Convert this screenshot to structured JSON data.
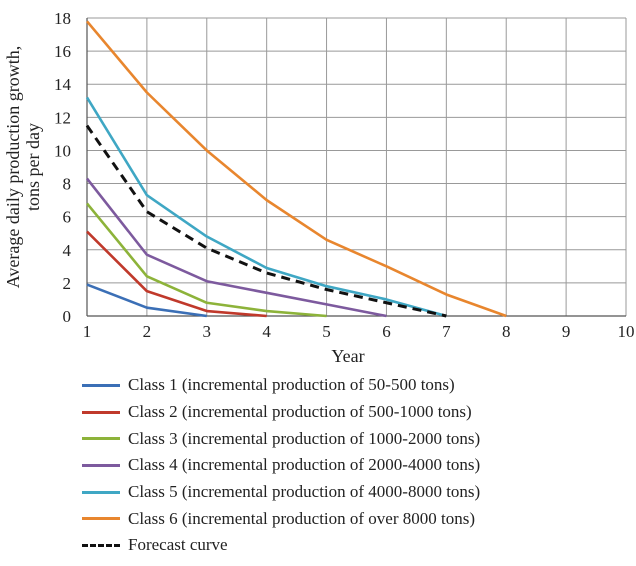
{
  "chart_data": {
    "type": "line",
    "xlabel": "Year",
    "ylabel": "Average daily production growth, tons per day",
    "xlim": [
      1,
      10
    ],
    "ylim": [
      0,
      18
    ],
    "xticks": [
      1,
      2,
      3,
      4,
      5,
      6,
      7,
      8,
      9,
      10
    ],
    "yticks": [
      0,
      2,
      4,
      6,
      8,
      10,
      12,
      14,
      16,
      18
    ],
    "grid": true,
    "legend_position": "bottom",
    "series": [
      {
        "name": "Class 1 (incremental production of 50-500 tons)",
        "color": "#3b6fb6",
        "dash": "solid",
        "x": [
          1,
          2,
          3
        ],
        "y": [
          1.9,
          0.5,
          0.0
        ]
      },
      {
        "name": "Class 2 (incremental production of 500-1000 tons)",
        "color": "#c0392b",
        "dash": "solid",
        "x": [
          1,
          2,
          3,
          4
        ],
        "y": [
          5.1,
          1.5,
          0.3,
          0.0
        ]
      },
      {
        "name": "Class 3 (incremental production of 1000-2000 tons)",
        "color": "#8db33a",
        "dash": "solid",
        "x": [
          1,
          2,
          3,
          4,
          5
        ],
        "y": [
          6.8,
          2.4,
          0.8,
          0.3,
          0.0
        ]
      },
      {
        "name": "Class 4 (incremental production of 2000-4000 tons)",
        "color": "#7d5a9e",
        "dash": "solid",
        "x": [
          1,
          2,
          3,
          4,
          5,
          6
        ],
        "y": [
          8.3,
          3.7,
          2.1,
          1.4,
          0.7,
          0.0
        ]
      },
      {
        "name": "Class 5 (incremental production of 4000-8000 tons)",
        "color": "#3fa7c4",
        "dash": "solid",
        "x": [
          1,
          2,
          3,
          4,
          5,
          6,
          7
        ],
        "y": [
          13.2,
          7.3,
          4.8,
          2.9,
          1.8,
          1.0,
          0.0
        ]
      },
      {
        "name": "Class 6 (incremental production of over 8000 tons)",
        "color": "#e8862e",
        "dash": "solid",
        "x": [
          1,
          2,
          3,
          4,
          5,
          6,
          7,
          8
        ],
        "y": [
          17.8,
          13.5,
          10.0,
          7.0,
          4.6,
          3.0,
          1.3,
          0.0
        ]
      },
      {
        "name": "Forecast curve",
        "color": "#111111",
        "dash": "dashed",
        "x": [
          1,
          2,
          3,
          4,
          5,
          6,
          7
        ],
        "y": [
          11.5,
          6.3,
          4.1,
          2.6,
          1.6,
          0.8,
          0.0
        ]
      }
    ]
  }
}
